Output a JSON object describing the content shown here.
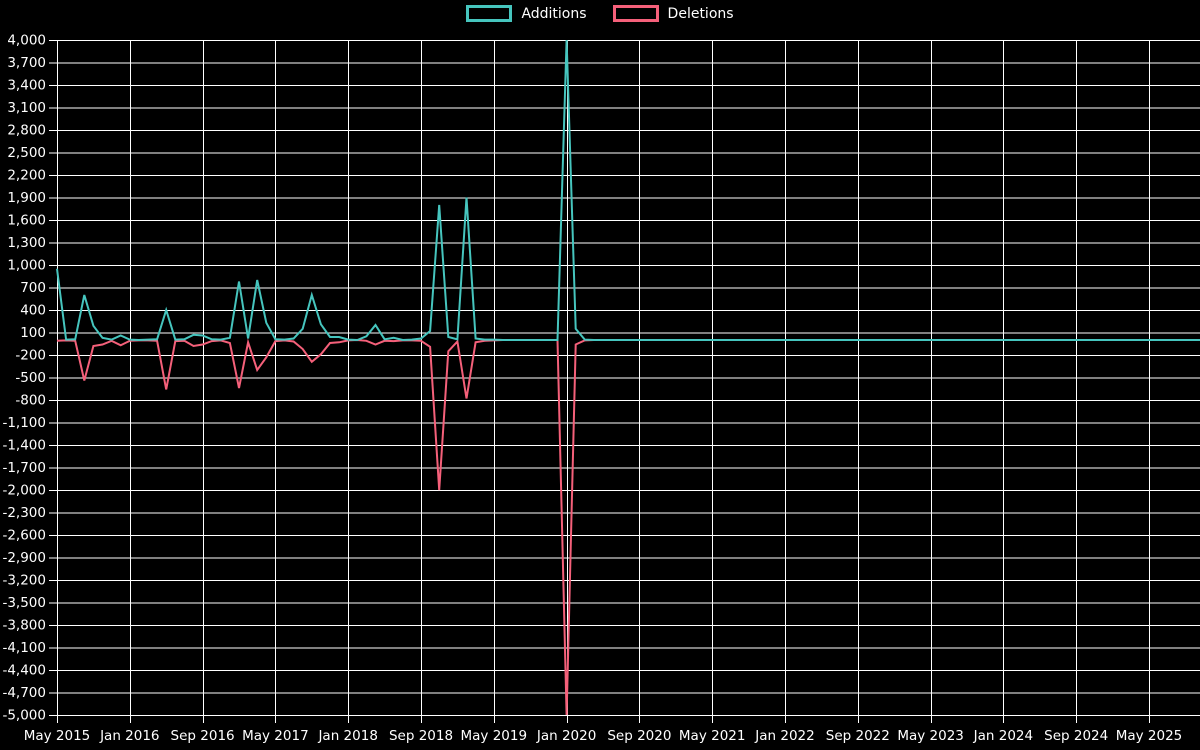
{
  "legend": {
    "items": [
      {
        "label": "Additions",
        "color": "#46C5BE"
      },
      {
        "label": "Deletions",
        "color": "#F5607A"
      }
    ]
  },
  "axes": {
    "y_tick_labels": [
      "4,000",
      "3,700",
      "3,400",
      "3,100",
      "2,800",
      "2,500",
      "2,200",
      "1,900",
      "1,600",
      "1,300",
      "1,000",
      "700",
      "400",
      "100",
      "-200",
      "-500",
      "-800",
      "-1,100",
      "-1,400",
      "-1,700",
      "-2,000",
      "-2,300",
      "-2,600",
      "-2,900",
      "-3,200",
      "-3,500",
      "-3,800",
      "-4,100",
      "-4,400",
      "-4,700",
      "-5,000"
    ],
    "x_tick_labels": [
      "May 2015",
      "Jan 2016",
      "Sep 2016",
      "May 2017",
      "Jan 2018",
      "Sep 2018",
      "May 2019",
      "Jan 2020",
      "Sep 2020",
      "May 2021",
      "Jan 2022",
      "Sep 2022",
      "May 2023",
      "Jan 2024",
      "Sep 2024",
      "May 2025"
    ]
  },
  "chart_data": {
    "type": "line",
    "title": "",
    "xlabel": "",
    "ylabel": "",
    "ylim": [
      -5000,
      4000
    ],
    "y_tick_step": 300,
    "grid": true,
    "legend_position": "top-center",
    "background": "#000000",
    "gridline_color": "#ffffff",
    "x": [
      "2015-05",
      "2015-06",
      "2015-07",
      "2015-08",
      "2015-09",
      "2015-10",
      "2015-11",
      "2015-12",
      "2016-01",
      "2016-02",
      "2016-03",
      "2016-04",
      "2016-05",
      "2016-06",
      "2016-07",
      "2016-08",
      "2016-09",
      "2016-10",
      "2016-11",
      "2016-12",
      "2017-01",
      "2017-02",
      "2017-03",
      "2017-04",
      "2017-05",
      "2017-06",
      "2017-07",
      "2017-08",
      "2017-09",
      "2017-10",
      "2017-11",
      "2017-12",
      "2018-01",
      "2018-02",
      "2018-03",
      "2018-04",
      "2018-05",
      "2018-06",
      "2018-07",
      "2018-08",
      "2018-09",
      "2018-10",
      "2018-11",
      "2018-12",
      "2019-01",
      "2019-02",
      "2019-03",
      "2019-04",
      "2019-05",
      "2019-06",
      "2019-07",
      "2019-08",
      "2019-09",
      "2019-10",
      "2019-11",
      "2019-12",
      "2020-01",
      "2020-02",
      "2020-03",
      "2020-04",
      "2020-05",
      "2020-06",
      "2020-07",
      "2020-08",
      "2020-09",
      "2020-10",
      "2020-11",
      "2020-12",
      "2021-01",
      "2021-02",
      "2021-03",
      "2021-04",
      "2021-05",
      "2021-06",
      "2021-07",
      "2021-08",
      "2021-09",
      "2021-10",
      "2021-11",
      "2021-12",
      "2022-01",
      "2022-02",
      "2022-03",
      "2022-04",
      "2022-05",
      "2022-06",
      "2022-07",
      "2022-08",
      "2022-09",
      "2022-10",
      "2022-11",
      "2022-12",
      "2023-01",
      "2023-02",
      "2023-03",
      "2023-04",
      "2023-05",
      "2023-06",
      "2023-07",
      "2023-08",
      "2023-09",
      "2023-10",
      "2023-11",
      "2023-12",
      "2024-01",
      "2024-02",
      "2024-03",
      "2024-04",
      "2024-05",
      "2024-06",
      "2024-07",
      "2024-08",
      "2024-09",
      "2024-10",
      "2024-11",
      "2024-12",
      "2025-01",
      "2025-02",
      "2025-03",
      "2025-04",
      "2025-05",
      "2025-06",
      "2025-07",
      "2025-08",
      "2025-09",
      "2025-10"
    ],
    "series": [
      {
        "name": "Additions",
        "color": "#46C5BE",
        "values": [
          950,
          5,
          10,
          600,
          190,
          30,
          5,
          60,
          5,
          0,
          5,
          10,
          400,
          5,
          10,
          70,
          60,
          10,
          5,
          30,
          780,
          20,
          800,
          230,
          10,
          5,
          20,
          150,
          600,
          210,
          40,
          40,
          5,
          0,
          50,
          200,
          10,
          30,
          0,
          5,
          20,
          120,
          1800,
          40,
          10,
          1900,
          20,
          5,
          5,
          0,
          0,
          0,
          0,
          0,
          0,
          0,
          4000,
          150,
          5,
          0,
          0,
          0,
          0,
          0,
          0,
          0,
          0,
          0,
          0,
          0,
          0,
          0,
          0,
          0,
          0,
          0,
          0,
          0,
          0,
          0,
          0,
          0,
          0,
          0,
          0,
          0,
          0,
          0,
          0,
          0,
          0,
          0,
          0,
          0,
          0,
          0,
          0,
          0,
          0,
          0,
          0,
          0,
          0,
          0,
          0,
          0,
          0,
          0,
          0,
          0,
          0,
          0,
          0,
          0,
          0,
          0,
          0,
          0,
          0,
          0,
          0,
          0,
          0,
          0,
          0,
          0
        ]
      },
      {
        "name": "Deletions",
        "color": "#F5607A",
        "values": [
          -10,
          -5,
          -10,
          -540,
          -80,
          -60,
          -10,
          -70,
          -10,
          -5,
          -5,
          -10,
          -660,
          -15,
          -10,
          -80,
          -60,
          -15,
          -5,
          -40,
          -640,
          -30,
          -400,
          -230,
          -15,
          -5,
          -20,
          -120,
          -290,
          -190,
          -40,
          -30,
          -5,
          0,
          -10,
          -60,
          -10,
          -15,
          -5,
          -5,
          -10,
          -90,
          -2000,
          -150,
          -20,
          -780,
          -30,
          -10,
          -5,
          0,
          0,
          0,
          0,
          0,
          0,
          0,
          -5000,
          -60,
          -5,
          0,
          0,
          0,
          0,
          0,
          0,
          0,
          0,
          0,
          0,
          0,
          0,
          0,
          0,
          0,
          0,
          0,
          0,
          0,
          0,
          0,
          0,
          0,
          0,
          0,
          0,
          0,
          0,
          0,
          0,
          0,
          0,
          0,
          0,
          0,
          0,
          0,
          0,
          0,
          0,
          0,
          0,
          0,
          0,
          0,
          0,
          0,
          0,
          0,
          0,
          0,
          0,
          0,
          0,
          0,
          0,
          0,
          0,
          0,
          0,
          0,
          0,
          0,
          0,
          0,
          0,
          0
        ]
      }
    ]
  }
}
